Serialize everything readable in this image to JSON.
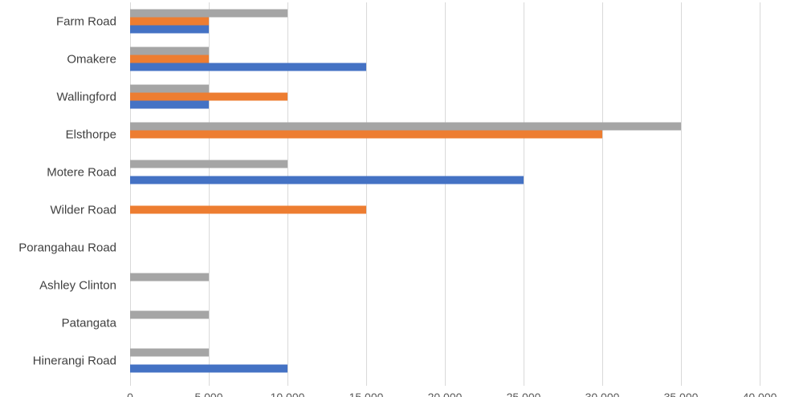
{
  "chart_data": {
    "type": "bar",
    "orientation": "horizontal",
    "title": "",
    "xlabel": "",
    "ylabel": "",
    "categories": [
      "Farm Road",
      "Omakere",
      "Wallingford",
      "Elsthorpe",
      "Motere Road",
      "Wilder Road",
      "Porangahau Road",
      "Ashley Clinton",
      "Patangata",
      "Hinerangi Road"
    ],
    "series": [
      {
        "color": "#a5a5a5",
        "values": [
          10000,
          5000,
          5000,
          35000,
          10000,
          0,
          0,
          5000,
          5000,
          5000
        ]
      },
      {
        "color": "#ed7d31",
        "values": [
          5000,
          5000,
          10000,
          30000,
          0,
          15000,
          0,
          0,
          0,
          0
        ]
      },
      {
        "color": "#4472c4",
        "values": [
          5000,
          15000,
          5000,
          0,
          25000,
          0,
          0,
          0,
          0,
          10000
        ]
      }
    ],
    "xlim": [
      0,
      40000
    ],
    "xticks": [
      0,
      5000,
      10000,
      15000,
      20000,
      25000,
      30000,
      35000,
      40000
    ],
    "xtick_labels": [
      "0",
      "5 000",
      "10 000",
      "15 000",
      "20 000",
      "25 000",
      "30 000",
      "35 000",
      "40 000"
    ],
    "grid": true,
    "legend": "none"
  }
}
